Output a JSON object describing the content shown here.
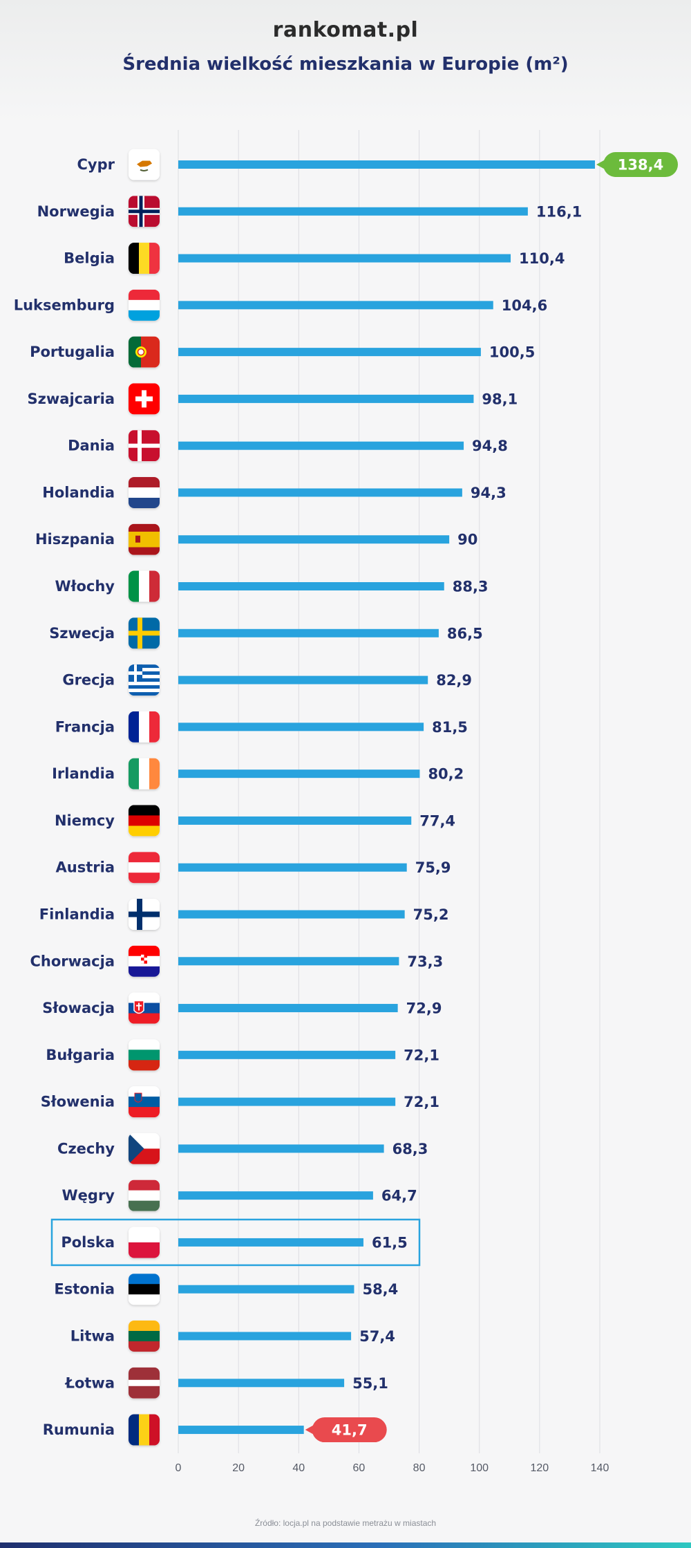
{
  "header": {
    "logo": "rankomat.pl",
    "title": "Średnia wielkość mieszkania w Europie (m²)"
  },
  "source": "Źródło: locja.pl na podstawie metrażu w miastach",
  "colors": {
    "bar": "#29a3de",
    "top_pill": "#6cbb3c",
    "bottom_pill": "#e94a4e",
    "highlight_frame": "#29a3de",
    "label": "#22306b"
  },
  "chart_data": {
    "type": "bar",
    "orientation": "horizontal",
    "title": "Średnia wielkość mieszkania w Europie (m²)",
    "xlim": [
      0,
      140
    ],
    "xticks": [
      0,
      20,
      40,
      60,
      80,
      100,
      120,
      140
    ],
    "grid": true,
    "highlighted": "Polska",
    "categories": [
      "Cypr",
      "Norwegia",
      "Belgia",
      "Luksemburg",
      "Portugalia",
      "Szwajcaria",
      "Dania",
      "Holandia",
      "Hiszpania",
      "Włochy",
      "Szwecja",
      "Grecja",
      "Francja",
      "Irlandia",
      "Niemcy",
      "Austria",
      "Finlandia",
      "Chorwacja",
      "Słowacja",
      "Bułgaria",
      "Słowenia",
      "Czechy",
      "Węgry",
      "Polska",
      "Estonia",
      "Litwa",
      "Łotwa",
      "Rumunia"
    ],
    "values": [
      138.4,
      116.1,
      110.4,
      104.6,
      100.5,
      98.1,
      94.8,
      94.3,
      90,
      88.3,
      86.5,
      82.9,
      81.5,
      80.2,
      77.4,
      75.9,
      75.2,
      73.3,
      72.9,
      72.1,
      72.1,
      68.3,
      64.7,
      61.5,
      58.4,
      57.4,
      55.1,
      41.7
    ],
    "value_labels": [
      "138,4",
      "116,1",
      "110,4",
      "104,6",
      "100,5",
      "98,1",
      "94,8",
      "94,3",
      "90",
      "88,3",
      "86,5",
      "82,9",
      "81,5",
      "80,2",
      "77,4",
      "75,9",
      "75,2",
      "73,3",
      "72,9",
      "72,1",
      "72,1",
      "68,3",
      "64,7",
      "61,5",
      "58,4",
      "57,4",
      "55,1",
      "41,7"
    ],
    "flag_icons": [
      "cyprus-flag-icon",
      "norway-flag-icon",
      "belgium-flag-icon",
      "luxembourg-flag-icon",
      "portugal-flag-icon",
      "switzerland-flag-icon",
      "denmark-flag-icon",
      "netherlands-flag-icon",
      "spain-flag-icon",
      "italy-flag-icon",
      "sweden-flag-icon",
      "greece-flag-icon",
      "france-flag-icon",
      "ireland-flag-icon",
      "germany-flag-icon",
      "austria-flag-icon",
      "finland-flag-icon",
      "croatia-flag-icon",
      "slovakia-flag-icon",
      "bulgaria-flag-icon",
      "slovenia-flag-icon",
      "czechia-flag-icon",
      "hungary-flag-icon",
      "poland-flag-icon",
      "estonia-flag-icon",
      "lithuania-flag-icon",
      "latvia-flag-icon",
      "romania-flag-icon"
    ]
  }
}
